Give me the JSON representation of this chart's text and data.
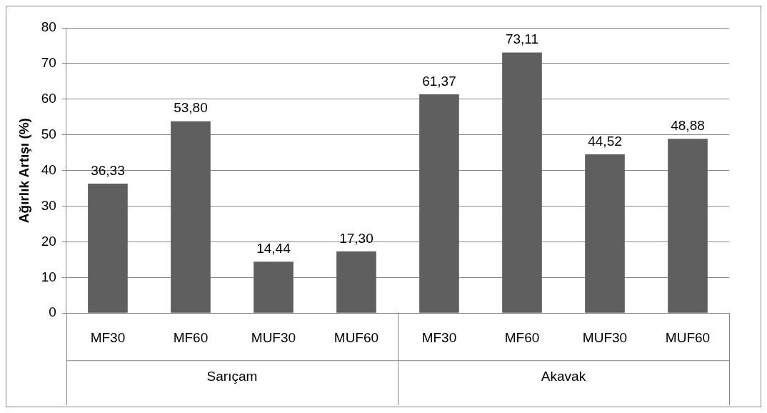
{
  "chart_data": {
    "type": "bar",
    "ylabel": "Ağırlık Artışı (%)",
    "categories": [
      "MF30",
      "MF60",
      "MUF30",
      "MUF60",
      "MF30",
      "MF60",
      "MUF30",
      "MUF60"
    ],
    "values": [
      36.33,
      53.8,
      14.44,
      17.3,
      61.37,
      73.11,
      44.52,
      48.88
    ],
    "value_labels": [
      "36,33",
      "53,80",
      "14,44",
      "17,30",
      "61,37",
      "73,11",
      "44,52",
      "48,88"
    ],
    "color": "#5f5f5f",
    "ylim": [
      0,
      80
    ],
    "yticks": [
      0,
      10,
      20,
      30,
      40,
      50,
      60,
      70,
      80
    ],
    "grid": "y",
    "legend": false,
    "annotations": [
      "Sarıçam",
      "Akavak"
    ]
  }
}
